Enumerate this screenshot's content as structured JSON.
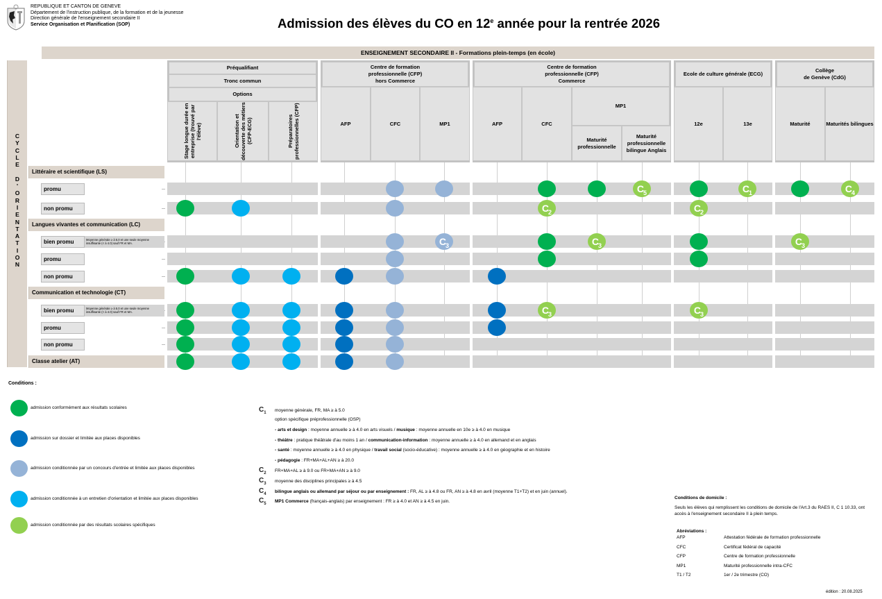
{
  "header": {
    "org_lines": [
      "REPUBLIQUE ET CANTON DE GENEVE",
      "Département de l'instruction publique, de la formation et de la jeunesse",
      "Direction générale de l'enseignement secondaire II",
      "Service Organisation et Planification (SOP)"
    ],
    "logo_icon": "geneva-coat-of-arms-icon",
    "title_pre": "Admission des élèves du CO en 12",
    "title_sup": "e",
    "title_post": " année pour la rentrée 2026"
  },
  "band_label": "ENSEIGNEMENT SECONDAIRE II - Formations plein-temps (en école)",
  "cycle_label": [
    "C",
    "Y",
    "C",
    "L",
    "E",
    " ",
    "D",
    "'",
    "O",
    "R",
    "I",
    "E",
    "N",
    "T",
    "A",
    "T",
    "I",
    "O",
    "N"
  ],
  "groups": [
    {
      "id": "preq",
      "lines": [
        "Préqualifiant",
        "Tronc commun",
        "Options"
      ],
      "columns": [
        {
          "id": "stage",
          "label": "Stage longue durée en entreprise (trouvé par l'élève)",
          "vertical": true
        },
        {
          "id": "odm",
          "label": "Orientation et découverte des métiers (CFP-ECG)",
          "vertical": true
        },
        {
          "id": "prep",
          "label": "Préparatoires professionnelles (CFP)",
          "vertical": true
        }
      ]
    },
    {
      "id": "cfp_hc",
      "lines": [
        "Centre de formation professionnelle (CFP)",
        "hors Commerce"
      ],
      "columns": [
        {
          "id": "afp1",
          "label": "AFP"
        },
        {
          "id": "cfc1",
          "label": "CFC"
        },
        {
          "id": "mp1a",
          "label": "MP1"
        }
      ]
    },
    {
      "id": "cfp_c",
      "lines": [
        "Centre de formation professionnelle (CFP)",
        "Commerce"
      ],
      "columns": [
        {
          "id": "afp2",
          "label": "AFP"
        },
        {
          "id": "cfc2",
          "label": "CFC"
        },
        {
          "id": "mp",
          "label": "Maturité professionnelle"
        },
        {
          "id": "mpba",
          "label": "Maturité professionnelle bilingue Anglais"
        }
      ],
      "mp1_label": "MP1"
    },
    {
      "id": "ecg",
      "lines": [
        "Ecole de culture générale (ECG)"
      ],
      "columns": [
        {
          "id": "e12",
          "label": "12e"
        },
        {
          "id": "e13",
          "label": "13e"
        }
      ]
    },
    {
      "id": "cdg",
      "lines": [
        "Collège",
        "de Genève (CdG)"
      ],
      "columns": [
        {
          "id": "mat",
          "label": "Maturité"
        },
        {
          "id": "matb",
          "label": "Maturités bilingues"
        }
      ]
    }
  ],
  "categories": [
    {
      "label": "Littéraire et scientifique (LS)",
      "rows": [
        {
          "label": "promu",
          "cells": {
            "cfc1": "grey",
            "mp1a": "grey",
            "cfc2": "green",
            "mp": "green",
            "mpba": "lime:5",
            "e12": "green",
            "e13": "lime:1",
            "mat": "green",
            "matb": "lime:4"
          }
        },
        {
          "label": "non promu",
          "cells": {
            "stage": "green",
            "odm": "cyan",
            "cfc1": "grey",
            "cfc2": "lime:2",
            "e12": "lime:2"
          }
        }
      ]
    },
    {
      "label": "Langues vivantes et communication (LC)",
      "rows": [
        {
          "label": "bien promu",
          "note": "Moyenne générale ≥ à 5.0 et une seule moyenne insuffisante (< à 4.0) sauf FR et MA.",
          "cells": {
            "cfc1": "grey",
            "mp1a": "grey:3",
            "cfc2": "green",
            "mp": "lime:3",
            "e12": "green",
            "mat": "lime:3"
          }
        },
        {
          "label": "promu",
          "cells": {
            "cfc1": "grey",
            "cfc2": "green",
            "e12": "green"
          }
        },
        {
          "label": "non promu",
          "cells": {
            "stage": "green",
            "odm": "cyan",
            "prep": "cyan",
            "afp1": "navy",
            "cfc1": "grey",
            "afp2": "navy"
          }
        }
      ]
    },
    {
      "label": "Communication et technologie (CT)",
      "rows": [
        {
          "label": "bien promu",
          "note": "Moyenne générale ≥ à 5.0 et une seule moyenne insuffisante (< à 4.0) sauf FR et MA.",
          "cells": {
            "stage": "green",
            "odm": "cyan",
            "prep": "cyan",
            "afp1": "navy",
            "cfc1": "grey",
            "afp2": "navy",
            "cfc2": "lime:3",
            "e12": "lime:3"
          }
        },
        {
          "label": "promu",
          "cells": {
            "stage": "green",
            "odm": "cyan",
            "prep": "cyan",
            "afp1": "navy",
            "cfc1": "grey",
            "afp2": "navy"
          }
        },
        {
          "label": "non promu",
          "cells": {
            "stage": "green",
            "odm": "cyan",
            "prep": "cyan",
            "afp1": "navy",
            "cfc1": "grey"
          }
        }
      ]
    },
    {
      "label": "Classe atelier (AT)",
      "rows": [],
      "cells": {
        "stage": "green",
        "odm": "cyan",
        "prep": "cyan",
        "afp1": "navy",
        "cfc1": "grey"
      }
    }
  ],
  "colors": {
    "green": "#00b050",
    "navy": "#0070c0",
    "grey": "#95b3d7",
    "cyan": "#00b0f0",
    "lime": "#92d050"
  },
  "conditions_title": "Conditions :",
  "legend": [
    {
      "color": "green",
      "label": "admission conformément aux résultats scolaires"
    },
    {
      "color": "navy",
      "label": "admission sur dossier et limitée aux places disponibles"
    },
    {
      "color": "grey",
      "label": "admission conditionnée par un concours d'entrée et limitée aux places disponibles"
    },
    {
      "color": "cyan",
      "label": "admission conditionnée à un entretien d'orientation et limitée aux places disponibles"
    },
    {
      "color": "lime",
      "label": "admission conditionnée par des résultats scolaires spécifiques"
    }
  ],
  "codes": {
    "c1": {
      "key": "C",
      "num": "1",
      "text": "moyenne générale, FR, MA ≥ à 5.0"
    },
    "c1_osp": "option spécifique préprofessionnelle (OSP)",
    "c1_lines": [
      {
        "bold": "- arts et design",
        "rest": " : moyenne annuelle ≥ à 4.0 en arts visuels / ",
        "bold2": "musique",
        "rest2": " : moyenne annuelle en 10e ≥ à 4.0 en musique"
      },
      {
        "bold": "- théâtre",
        "rest": " : pratique théâtrale d'au moins 1 an / ",
        "bold2": "communication-information",
        "rest2": " : moyenne annuelle ≥ à 4.0 en allemand et en anglais"
      },
      {
        "bold": "- santé",
        "rest": " : moyenne annuelle ≥ à 4.0 en physique / ",
        "bold2": "travail social",
        "rest2": " (socio-éducative) : moyenne annuelle ≥ à 4.0 en géographie et en histoire"
      },
      {
        "bold": "- pédagogie",
        "rest": " :  FR+MA+AL+AN ≥ à 20.0",
        "bold2": "",
        "rest2": ""
      }
    ],
    "c2": {
      "key": "C",
      "num": "2",
      "text": "FR+MA+AL ≥ à 9.0 ou FR+MA+AN ≥ à 9.0"
    },
    "c3": {
      "key": "C",
      "num": "3",
      "text": "moyenne des disciplines principales ≥ à 4.5"
    },
    "c4": {
      "key": "C",
      "num": "4",
      "bold": "bilingue anglais ou allemand par séjour ou par enseignement :",
      "text": "  FR, AL ≥ à 4.8 ou FR, AN ≥ à 4.8 en avril (moyenne T1+T2) et en juin (annuel)."
    },
    "c5": {
      "key": "C",
      "num": "5",
      "bold": "MP1 Commerce",
      "text": " (français-anglais) par enseignement : FR ≥ à 4.0 et AN ≥ à 4.5 en juin."
    }
  },
  "domicile": {
    "title": "Conditions de domicile :",
    "text": "Seuls les élèves qui remplissent les conditions de domicile de l'Art.3 du RAES II, C 1 10.33, ont accès à l'enseignement secondaire II à plein temps."
  },
  "abbreviations": {
    "title": "Abréviations :",
    "items": [
      {
        "abbr": "AFP",
        "desc": "Attestation fédérale de formation professionnelle"
      },
      {
        "abbr": "CFC",
        "desc": "Certificat fédéral de capacité"
      },
      {
        "abbr": "CFP",
        "desc": "Centre de formation professionnelle"
      },
      {
        "abbr": "MP1",
        "desc": "Maturité professionnelle intra-CFC"
      },
      {
        "abbr": "T1 / T2",
        "desc": "1er / 2e trimestre (CO)"
      }
    ]
  },
  "edition": "édition : 20.08.2025"
}
